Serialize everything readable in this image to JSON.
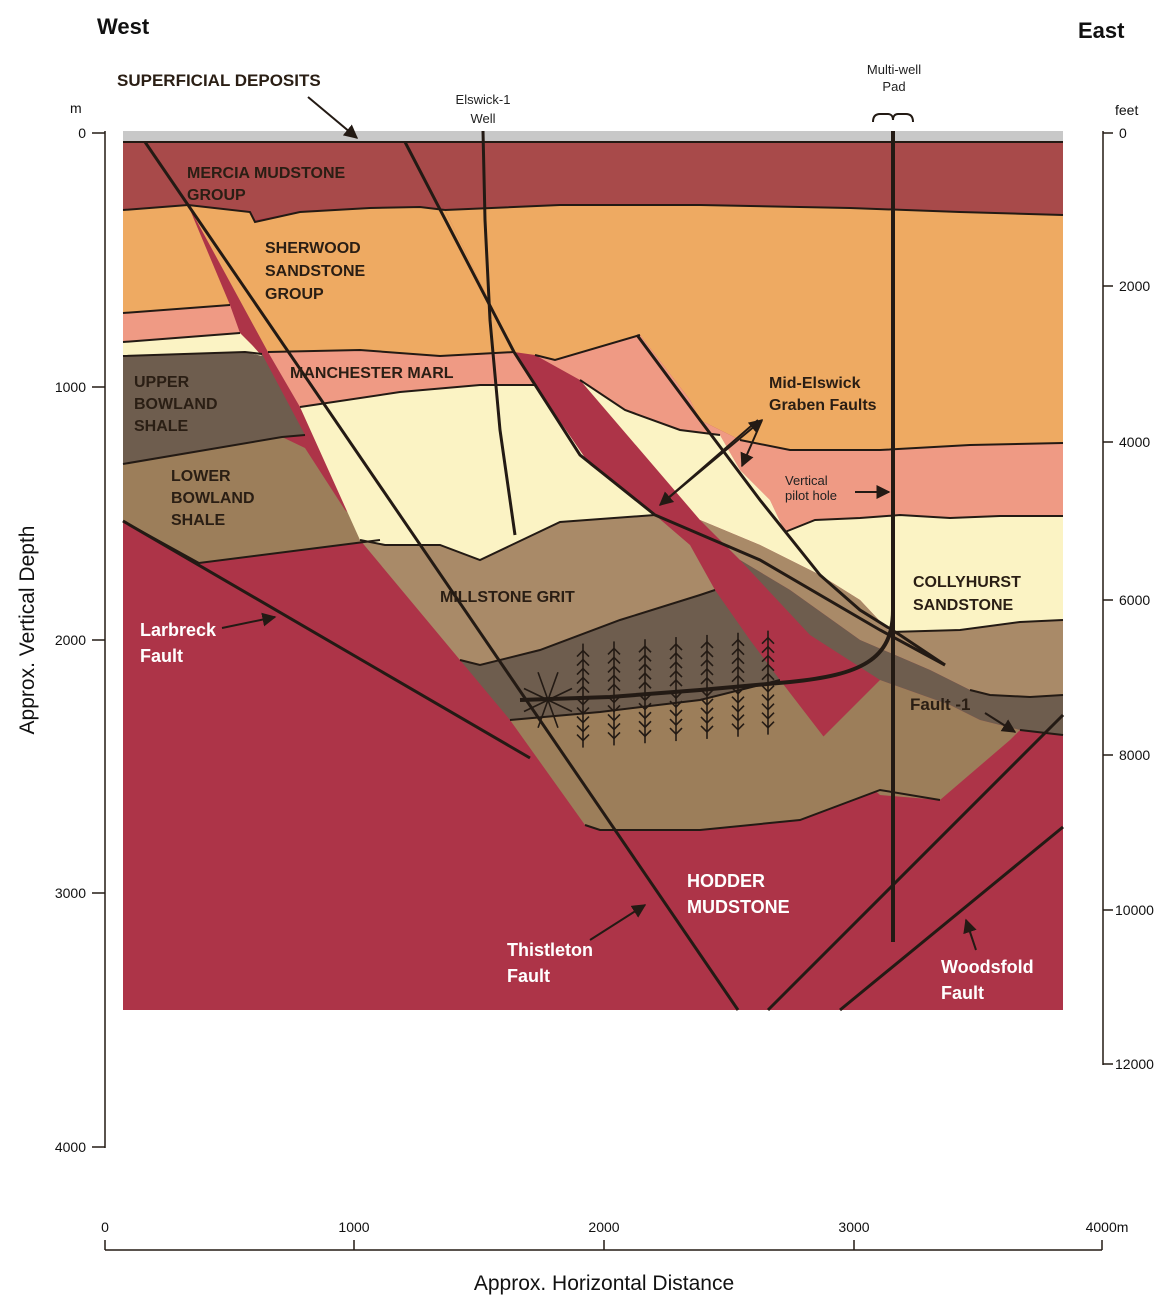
{
  "directions": {
    "west": "West",
    "east": "East"
  },
  "axes": {
    "y_left_title": "Approx. Vertical Depth",
    "y_left_unit": "m",
    "y_left_ticks": [
      "0",
      "1000",
      "2000",
      "3000",
      "4000"
    ],
    "y_right_unit": "feet",
    "y_right_ticks": [
      "0",
      "2000",
      "4000",
      "6000",
      "8000",
      "10000",
      "12000"
    ],
    "x_title": "Approx. Horizontal Distance",
    "x_ticks": [
      "0",
      "1000",
      "2000",
      "3000",
      "4000m"
    ]
  },
  "units": [
    "Superficial Deposits",
    "Mercia Mudstone Group",
    "Sherwood Sandstone Group",
    "Manchester Marl",
    "Collyhurst Sandstone",
    "Upper Bowland Shale",
    "Lower Bowland Shale",
    "Millstone Grit",
    "Hodder Mudstone"
  ],
  "colors": {
    "superficial": "#c8c8c8",
    "mercia": "#a84a4a",
    "sherwood": "#eeaa62",
    "manchester_marl": "#ef9a84",
    "collyhurst": "#fbf3c4",
    "upper_bowland": "#6e5d4e",
    "lower_bowland": "#9c7e5a",
    "millstone": "#a98a68",
    "hodder": "#ad3448",
    "line": "#231a14"
  },
  "labels": {
    "superficial": "SUPERFICIAL DEPOSITS",
    "mercia": [
      "MERCIA MUDSTONE",
      "GROUP"
    ],
    "sherwood": [
      "SHERWOOD",
      "SANDSTONE",
      "GROUP"
    ],
    "manchester": "MANCHESTER MARL",
    "upper_bowland": [
      "UPPER",
      "BOWLAND",
      "SHALE"
    ],
    "lower_bowland": [
      "LOWER",
      "BOWLAND",
      "SHALE"
    ],
    "millstone": "MILLSTONE GRIT",
    "collyhurst": [
      "COLLYHURST",
      "SANDSTONE"
    ],
    "graben": [
      "Mid-Elswick",
      "Graben Faults"
    ],
    "larbreck": [
      "Larbreck",
      "Fault"
    ],
    "hodder": [
      "HODDER",
      "MUDSTONE"
    ],
    "thistleton": [
      "Thistleton",
      "Fault"
    ],
    "woodsfold": [
      "Woodsfold",
      "Fault"
    ],
    "fault1": "Fault -1",
    "pilot": [
      "Vertical",
      "pilot hole"
    ],
    "elswick": [
      "Elswick-1",
      "Well"
    ],
    "pad": [
      "Multi-well",
      "Pad"
    ]
  }
}
